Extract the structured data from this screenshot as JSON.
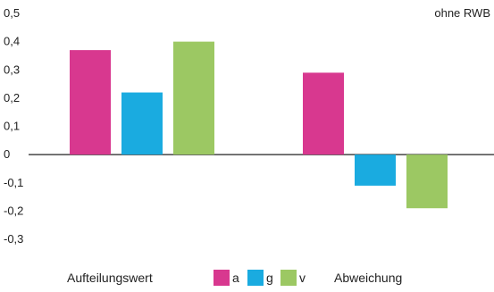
{
  "chart_data": {
    "type": "bar",
    "corner_note": "ohne RWB",
    "groups": [
      "Aufteilungswert",
      "Abweichung"
    ],
    "series": [
      {
        "name": "a",
        "color": "#d8388f",
        "values": [
          0.37,
          0.29
        ]
      },
      {
        "name": "g",
        "color": "#1aabe0",
        "values": [
          0.22,
          -0.11
        ]
      },
      {
        "name": "v",
        "color": "#9cc863",
        "values": [
          0.4,
          -0.19
        ]
      }
    ],
    "ylim": [
      -0.3,
      0.5
    ],
    "yticks": [
      "0,5",
      "0,4",
      "0,3",
      "0,2",
      "0,1",
      "0",
      "-0,1",
      "-0,2",
      "-0,3"
    ],
    "ytick_values": [
      0.5,
      0.4,
      0.3,
      0.2,
      0.1,
      0,
      -0.1,
      -0.2,
      -0.3
    ],
    "grid": false,
    "legend_position": "bottom"
  }
}
